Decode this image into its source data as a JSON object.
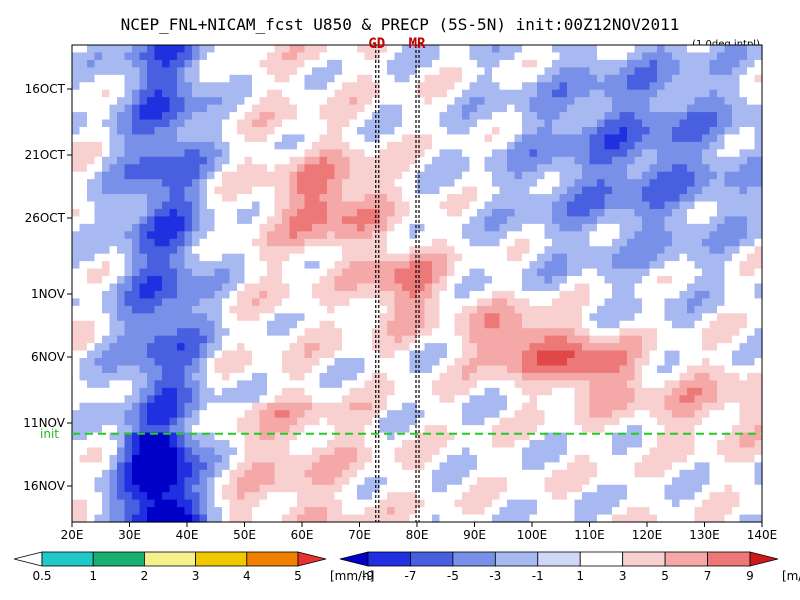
{
  "chart_data": {
    "type": "heatmap",
    "title": "NCEP_FNL+NICAM_fcst U850 & PRECP (5S-5N) init:00Z12NOV2011",
    "subtitle": "(1.0deg intpl)",
    "x_range": [
      20,
      140
    ],
    "x_ticks": [
      "20E",
      "30E",
      "40E",
      "50E",
      "60E",
      "70E",
      "80E",
      "90E",
      "100E",
      "110E",
      "120E",
      "130E",
      "140E"
    ],
    "y_ticks": [
      "16OCT",
      "21OCT",
      "26OCT",
      "1NOV",
      "6NOV",
      "11NOV",
      "16NOV"
    ],
    "init_label": "init",
    "markers": [
      {
        "label": "GD",
        "lon": 73
      },
      {
        "label": "MR",
        "lon": 80
      }
    ],
    "precip_colorbar": {
      "unit": "[mm/h]",
      "labels": [
        "0.5",
        "1",
        "2",
        "3",
        "4",
        "5"
      ],
      "colors": [
        "#ffffff",
        "#20c8c8",
        "#18b070",
        "#f4f08c",
        "#f0c800",
        "#f08000",
        "#e83232"
      ]
    },
    "wind_colorbar": {
      "unit": "[m/s]",
      "labels": [
        "-9",
        "-7",
        "-5",
        "-3",
        "-1",
        "1",
        "3",
        "5",
        "7",
        "9"
      ],
      "colors": [
        "#0000c8",
        "#2030e0",
        "#4860e0",
        "#7890e8",
        "#a8b8f0",
        "#d0d8f8",
        "#ffffff",
        "#f8d0d0",
        "#f4a8a8",
        "#ec7878",
        "#e04848",
        "#d01818"
      ]
    }
  }
}
